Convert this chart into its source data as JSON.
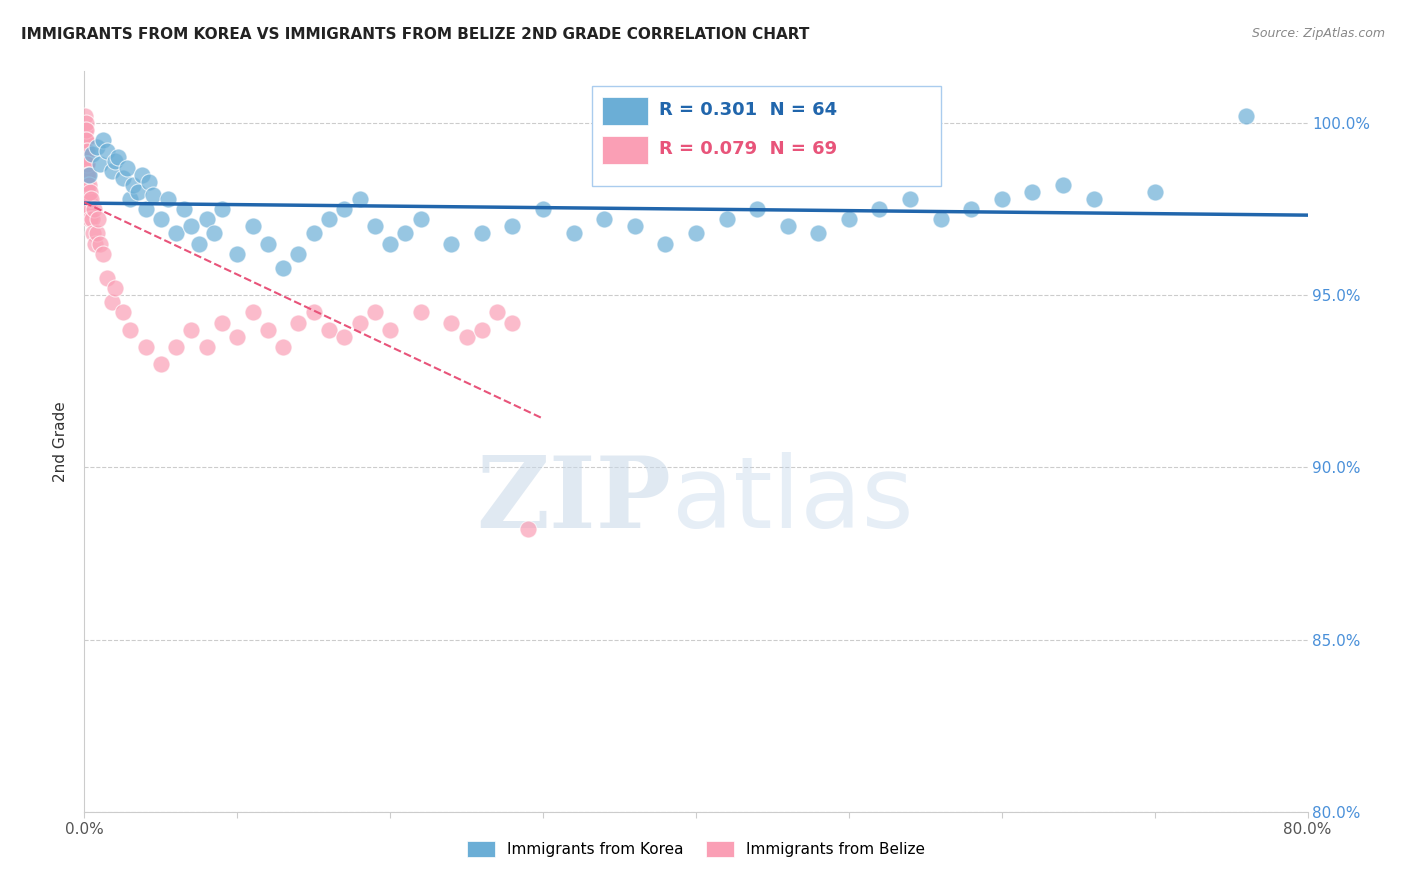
{
  "title": "IMMIGRANTS FROM KOREA VS IMMIGRANTS FROM BELIZE 2ND GRADE CORRELATION CHART",
  "source": "Source: ZipAtlas.com",
  "ylabel": "2nd Grade",
  "korea_color": "#6baed6",
  "belize_color": "#fa9fb5",
  "korea_R": 0.301,
  "korea_N": 64,
  "belize_R": 0.079,
  "belize_N": 69,
  "legend_label_korea": "Immigrants from Korea",
  "legend_label_belize": "Immigrants from Belize",
  "watermark_zip": "ZIP",
  "watermark_atlas": "atlas",
  "background_color": "#ffffff",
  "title_color": "#222222",
  "right_axis_color": "#4a90d9",
  "xlim": [
    0.0,
    80.0
  ],
  "ylim": [
    80.0,
    101.5
  ],
  "yticks": [
    80.0,
    85.0,
    90.0,
    95.0,
    100.0
  ],
  "korea_x": [
    0.3,
    0.5,
    0.8,
    1.0,
    1.2,
    1.5,
    1.8,
    2.0,
    2.2,
    2.5,
    2.8,
    3.0,
    3.2,
    3.5,
    3.8,
    4.0,
    4.2,
    4.5,
    5.0,
    5.5,
    6.0,
    6.5,
    7.0,
    7.5,
    8.0,
    8.5,
    9.0,
    10.0,
    11.0,
    12.0,
    13.0,
    14.0,
    15.0,
    16.0,
    17.0,
    18.0,
    19.0,
    20.0,
    21.0,
    22.0,
    24.0,
    26.0,
    28.0,
    30.0,
    32.0,
    34.0,
    36.0,
    38.0,
    40.0,
    42.0,
    44.0,
    46.0,
    48.0,
    50.0,
    52.0,
    54.0,
    56.0,
    58.0,
    60.0,
    62.0,
    64.0,
    66.0,
    70.0,
    76.0
  ],
  "korea_y": [
    98.5,
    99.1,
    99.3,
    98.8,
    99.5,
    99.2,
    98.6,
    98.9,
    99.0,
    98.4,
    98.7,
    97.8,
    98.2,
    98.0,
    98.5,
    97.5,
    98.3,
    97.9,
    97.2,
    97.8,
    96.8,
    97.5,
    97.0,
    96.5,
    97.2,
    96.8,
    97.5,
    96.2,
    97.0,
    96.5,
    95.8,
    96.2,
    96.8,
    97.2,
    97.5,
    97.8,
    97.0,
    96.5,
    96.8,
    97.2,
    96.5,
    96.8,
    97.0,
    97.5,
    96.8,
    97.2,
    97.0,
    96.5,
    96.8,
    97.2,
    97.5,
    97.0,
    96.8,
    97.2,
    97.5,
    97.8,
    97.2,
    97.5,
    97.8,
    98.0,
    98.2,
    97.8,
    98.0,
    100.2
  ],
  "belize_x": [
    0.05,
    0.05,
    0.05,
    0.05,
    0.05,
    0.08,
    0.08,
    0.08,
    0.08,
    0.1,
    0.1,
    0.1,
    0.1,
    0.1,
    0.12,
    0.12,
    0.15,
    0.15,
    0.15,
    0.18,
    0.18,
    0.2,
    0.2,
    0.22,
    0.25,
    0.25,
    0.28,
    0.3,
    0.35,
    0.38,
    0.4,
    0.45,
    0.5,
    0.55,
    0.6,
    0.7,
    0.8,
    0.9,
    1.0,
    1.2,
    1.5,
    1.8,
    2.0,
    2.5,
    3.0,
    4.0,
    5.0,
    6.0,
    7.0,
    8.0,
    9.0,
    10.0,
    11.0,
    12.0,
    13.0,
    14.0,
    15.0,
    16.0,
    17.0,
    18.0,
    19.0,
    20.0,
    22.0,
    24.0,
    25.0,
    26.0,
    27.0,
    28.0,
    29.0
  ],
  "belize_y": [
    100.2,
    99.8,
    99.5,
    99.2,
    98.8,
    100.0,
    99.5,
    99.0,
    98.5,
    99.8,
    99.2,
    98.8,
    98.2,
    97.8,
    99.5,
    99.0,
    99.2,
    98.8,
    98.2,
    98.5,
    98.0,
    98.8,
    98.2,
    97.8,
    98.5,
    97.5,
    97.8,
    98.2,
    97.5,
    98.0,
    97.2,
    97.8,
    97.2,
    96.8,
    97.5,
    96.5,
    96.8,
    97.2,
    96.5,
    96.2,
    95.5,
    94.8,
    95.2,
    94.5,
    94.0,
    93.5,
    93.0,
    93.5,
    94.0,
    93.5,
    94.2,
    93.8,
    94.5,
    94.0,
    93.5,
    94.2,
    94.5,
    94.0,
    93.8,
    94.2,
    94.5,
    94.0,
    94.5,
    94.2,
    93.8,
    94.0,
    94.5,
    94.2,
    88.2
  ]
}
